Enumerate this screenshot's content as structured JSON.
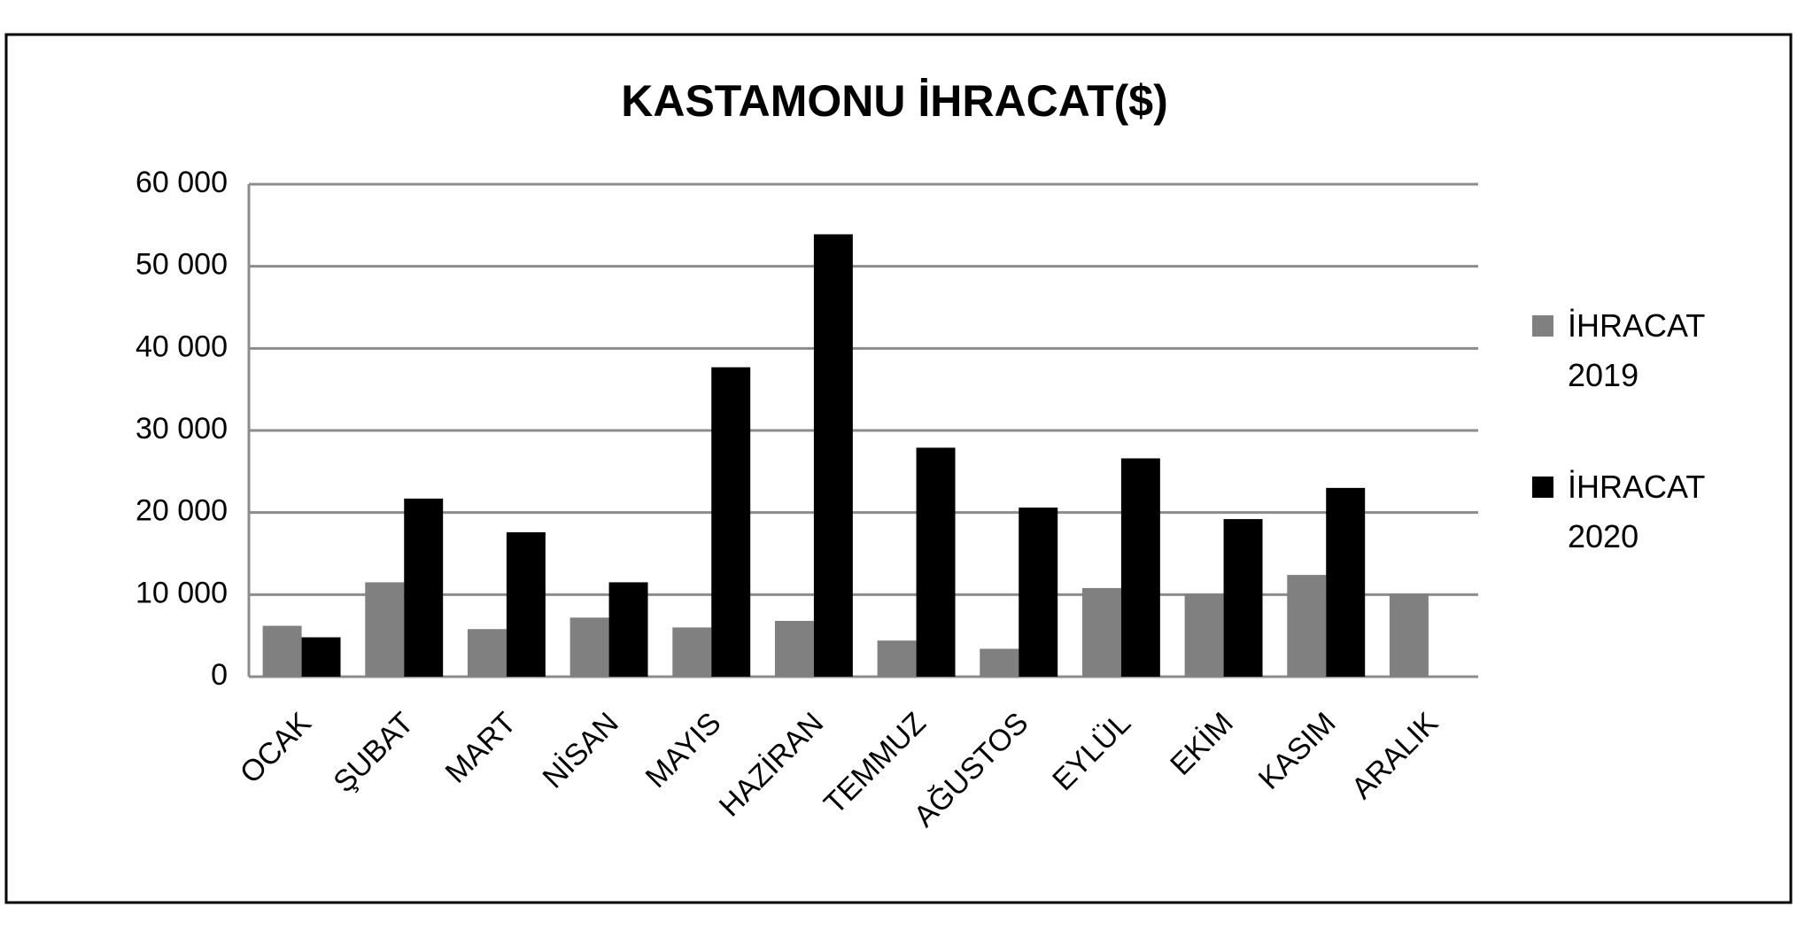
{
  "chart_data": {
    "type": "bar",
    "title": "KASTAMONU İHRACAT($)",
    "categories": [
      "OCAK",
      "ŞUBAT",
      "MART",
      "NİSAN",
      "MAYIS",
      "HAZİRAN",
      "TEMMUZ",
      "AĞUSTOS",
      "EYLÜL",
      "EKİM",
      "KASIM",
      "ARALIK"
    ],
    "series": [
      {
        "name": "İHRACAT 2019",
        "color": "#808080",
        "values": [
          6200,
          11500,
          5800,
          7200,
          6000,
          6800,
          4400,
          3400,
          10800,
          10100,
          12400,
          10100
        ]
      },
      {
        "name": "İHRACAT 2020",
        "color": "#000000",
        "values": [
          4800,
          21700,
          17600,
          11500,
          37700,
          53900,
          27900,
          20600,
          26600,
          19200,
          23000,
          null
        ]
      }
    ],
    "ylim": [
      0,
      60000
    ],
    "yticks": [
      0,
      {
        "value": 10000,
        "label": "10 000"
      },
      {
        "value": 20000,
        "label": "20 000"
      },
      {
        "value": 30000,
        "label": "30 000"
      },
      {
        "value": 40000,
        "label": "40 000"
      },
      {
        "value": 50000,
        "label": "50 000"
      },
      {
        "value": 60000,
        "label": "60 000"
      }
    ],
    "grid": true,
    "legend": "right"
  }
}
